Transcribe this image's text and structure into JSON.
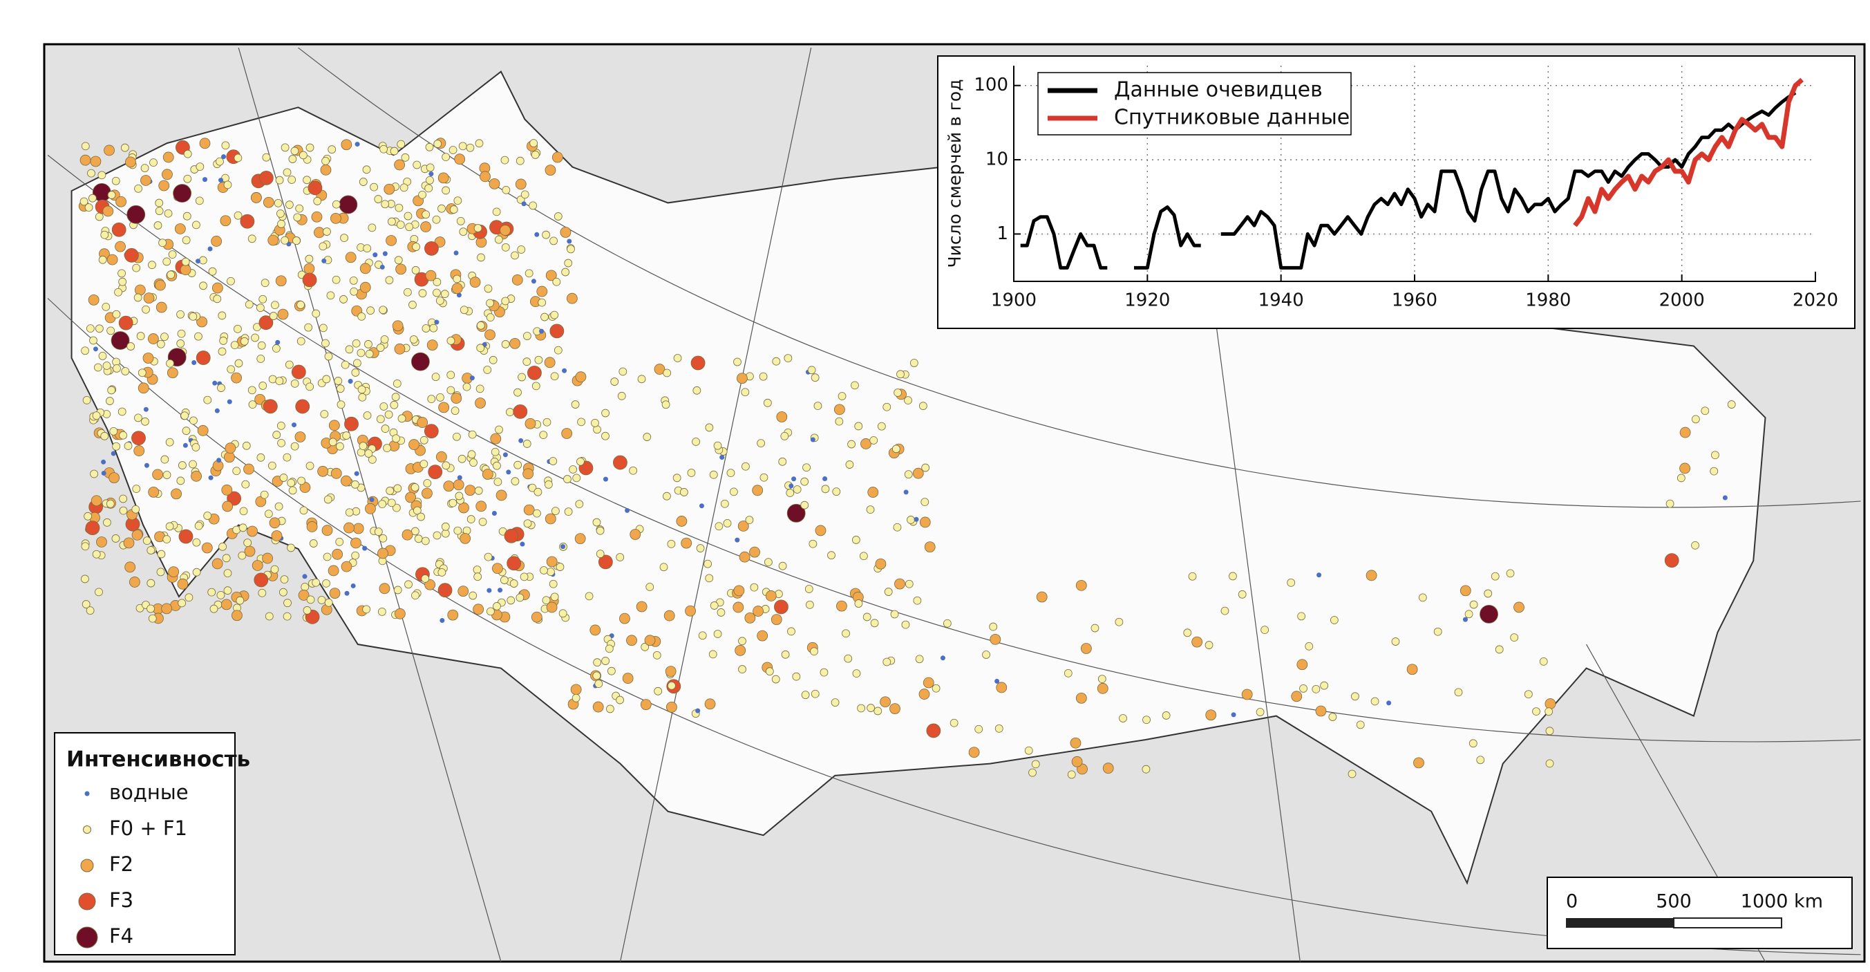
{
  "legend": {
    "title": "Интенсивность",
    "items": [
      {
        "name": "водные",
        "color": "#4a6fc4"
      },
      {
        "name": "F0 + F1",
        "color": "#f6f1a6"
      },
      {
        "name": "F2",
        "color": "#f0a64a"
      },
      {
        "name": "F3",
        "color": "#e0502e"
      },
      {
        "name": "F4",
        "color": "#6e0f27"
      }
    ]
  },
  "scale_bar": {
    "labels": [
      "0",
      "500",
      "1000 km"
    ]
  },
  "chart_data": {
    "type": "line",
    "y_label": "Число смерчей в год",
    "log_scale": true,
    "grid": true,
    "xlim": [
      1900,
      2020
    ],
    "xticks": [
      1900,
      1920,
      1940,
      1960,
      1980,
      2000,
      2020
    ],
    "ylim": [
      0.23,
      185
    ],
    "yticks": [
      1,
      10,
      100
    ],
    "x": [
      1901,
      1902,
      1903,
      1904,
      1905,
      1906,
      1907,
      1908,
      1909,
      1910,
      1911,
      1912,
      1913,
      1914,
      1915,
      1916,
      1917,
      1918,
      1919,
      1920,
      1921,
      1922,
      1923,
      1924,
      1925,
      1926,
      1927,
      1928,
      1929,
      1930,
      1931,
      1932,
      1933,
      1934,
      1935,
      1936,
      1937,
      1938,
      1939,
      1940,
      1941,
      1942,
      1943,
      1944,
      1945,
      1946,
      1947,
      1948,
      1949,
      1950,
      1951,
      1952,
      1953,
      1954,
      1955,
      1956,
      1957,
      1958,
      1959,
      1960,
      1961,
      1962,
      1963,
      1964,
      1965,
      1966,
      1967,
      1968,
      1969,
      1970,
      1971,
      1972,
      1973,
      1974,
      1975,
      1976,
      1977,
      1978,
      1979,
      1980,
      1981,
      1982,
      1983,
      1984,
      1985,
      1986,
      1987,
      1988,
      1989,
      1990,
      1991,
      1992,
      1993,
      1994,
      1995,
      1996,
      1997,
      1998,
      1999,
      2000,
      2001,
      2002,
      2003,
      2004,
      2005,
      2006,
      2007,
      2008,
      2009,
      2010,
      2011,
      2012,
      2013,
      2014,
      2015,
      2016,
      2017,
      2018
    ],
    "series": [
      {
        "name": "Данные очевидцев",
        "color": "#000000",
        "values": [
          0.7,
          0.7,
          1.5,
          1.7,
          1.7,
          1,
          0.35,
          0.35,
          0.6,
          1,
          0.7,
          0.7,
          0.35,
          0.35,
          null,
          null,
          null,
          0.35,
          0.35,
          0.35,
          1,
          2,
          2.3,
          1.8,
          0.7,
          1,
          0.7,
          0.7,
          null,
          null,
          1,
          1,
          1,
          1.3,
          1.7,
          1.3,
          2,
          1.7,
          1.3,
          0.35,
          0.35,
          0.35,
          0.35,
          1,
          0.7,
          1.3,
          1.3,
          1,
          1.3,
          1.7,
          1.3,
          1,
          1.7,
          2.5,
          3,
          2.5,
          3.5,
          2.5,
          4,
          3,
          1.7,
          2.5,
          2,
          7,
          7,
          7,
          4,
          2,
          1.5,
          4,
          7,
          7,
          3,
          2,
          4,
          3,
          2,
          2.5,
          2.5,
          3,
          2,
          2.5,
          3,
          7,
          7,
          6,
          7,
          7,
          5,
          7,
          6,
          8,
          10,
          12,
          12,
          10,
          8,
          8,
          10,
          8,
          12,
          15,
          20,
          20,
          25,
          25,
          30,
          25,
          30,
          35,
          40,
          45,
          40,
          50,
          60,
          70,
          80,
          null
        ]
      },
      {
        "name": "Спутниковые данные",
        "color": "#d7372a",
        "values": [
          null,
          null,
          null,
          null,
          null,
          null,
          null,
          null,
          null,
          null,
          null,
          null,
          null,
          null,
          null,
          null,
          null,
          null,
          null,
          null,
          null,
          null,
          null,
          null,
          null,
          null,
          null,
          null,
          null,
          null,
          null,
          null,
          null,
          null,
          null,
          null,
          null,
          null,
          null,
          null,
          null,
          null,
          null,
          null,
          null,
          null,
          null,
          null,
          null,
          null,
          null,
          null,
          null,
          null,
          null,
          null,
          null,
          null,
          null,
          null,
          null,
          null,
          null,
          null,
          null,
          null,
          null,
          null,
          null,
          null,
          null,
          null,
          null,
          null,
          null,
          null,
          null,
          null,
          null,
          null,
          null,
          null,
          null,
          1.3,
          1.7,
          3,
          2,
          4,
          3,
          4,
          5,
          6,
          4,
          6,
          5,
          7,
          8,
          10,
          7,
          7,
          5,
          10,
          12,
          10,
          15,
          20,
          15,
          25,
          35,
          30,
          25,
          30,
          20,
          20,
          15,
          60,
          100,
          120
        ]
      }
    ]
  }
}
